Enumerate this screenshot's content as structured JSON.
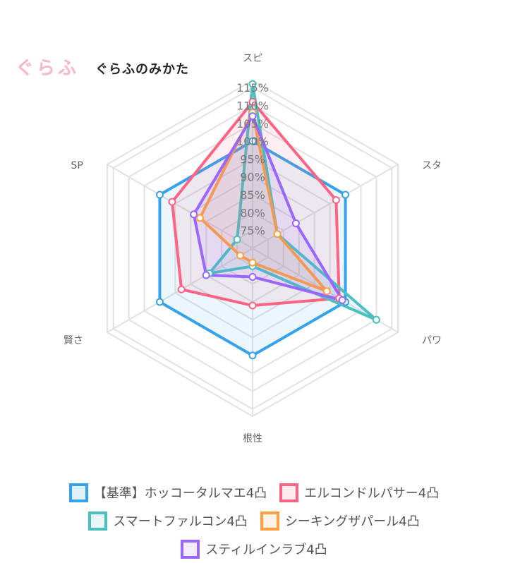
{
  "header": {
    "logo": "ぐらふ",
    "subtitle": "ぐらふのみかた"
  },
  "chart_data": {
    "type": "radar",
    "axes": [
      "スピ",
      "スタ",
      "パワ",
      "根性",
      "賢さ",
      "SP"
    ],
    "ticks": [
      "75%",
      "80%",
      "85%",
      "90%",
      "95%",
      "100%",
      "105%",
      "110%",
      "115%"
    ],
    "rlim": [
      70,
      117
    ],
    "grid": true,
    "legend_position": "bottom",
    "series": [
      {
        "name": "【基準】ホッコータルマエ4凸",
        "color": "#36a2eb",
        "values": [
          100,
          100,
          100,
          100,
          100,
          100
        ]
      },
      {
        "name": "エルコンドルパサー4凸",
        "color": "#ff6384",
        "values": [
          111,
          97,
          98,
          86,
          93,
          96
        ]
      },
      {
        "name": "スマートファルコン4凸",
        "color": "#4bc0c0",
        "values": [
          116,
          78,
          110,
          75,
          84,
          75
        ]
      },
      {
        "name": "シーキングザパール4凸",
        "color": "#ff9f40",
        "values": [
          108,
          78,
          94,
          74,
          74,
          87
        ]
      },
      {
        "name": "スティルインラブ4凸",
        "color": "#9966ff",
        "values": [
          107,
          84,
          99,
          78,
          85,
          89
        ]
      }
    ]
  }
}
